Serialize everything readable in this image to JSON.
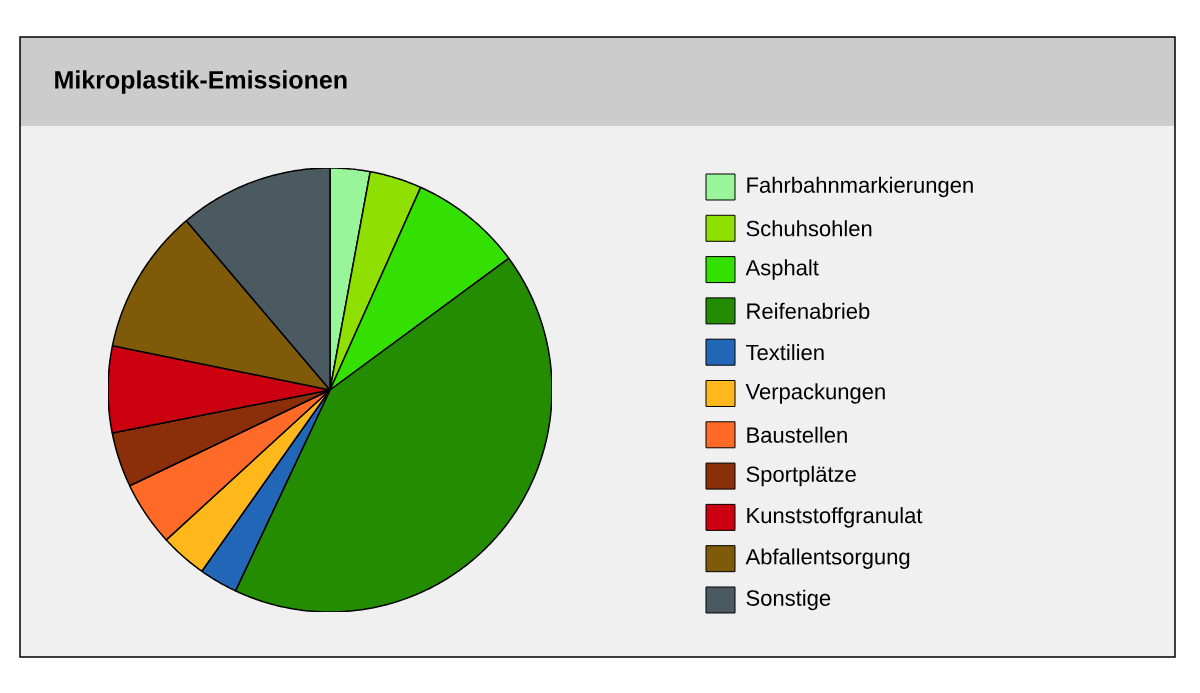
{
  "chart_data": {
    "type": "pie",
    "title": "Mikroplastik-Emissionen",
    "categories": [
      "Fahrbahnmarkierungen",
      "Schuhsohlen",
      "Asphalt",
      "Reifenabrieb",
      "Textilien",
      "Verpackungen",
      "Baustellen",
      "Sportplätze",
      "Kunststoffgranulat",
      "Abfallentsorgung",
      "Sonstige"
    ],
    "values": [
      2.9,
      3.8,
      8.2,
      42.1,
      2.8,
      3.4,
      4.7,
      4.0,
      6.3,
      10.6,
      11.2
    ],
    "colors": [
      "#99f59a",
      "#8fe000",
      "#33e000",
      "#238c00",
      "#2266b8",
      "#ffb81c",
      "#ff6a28",
      "#8b2e0a",
      "#cc0010",
      "#7f5a08",
      "#4a5a60"
    ],
    "legend": "right"
  }
}
